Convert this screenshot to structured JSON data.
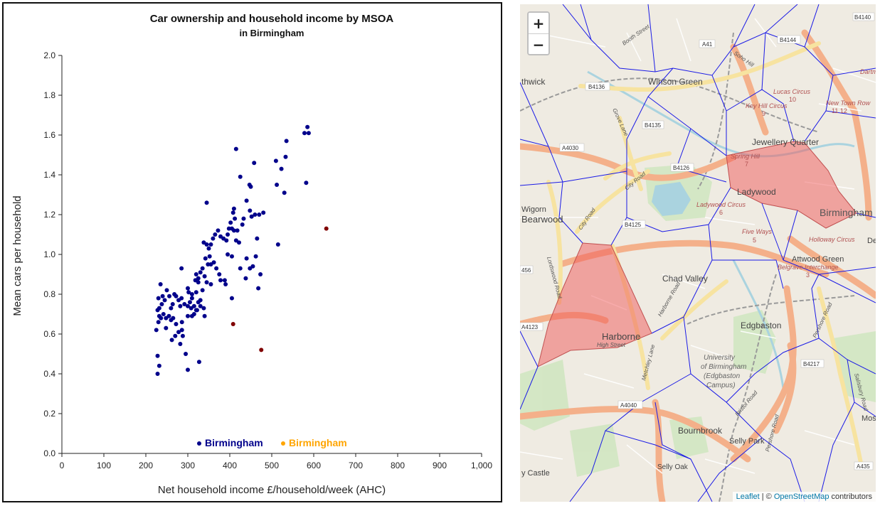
{
  "chart_data": {
    "type": "scatter",
    "title": "Car ownership and household income by MSOA",
    "subtitle": "in Birmingham",
    "xlabel": "Net household income £/household/week (AHC)",
    "ylabel": "Mean cars per household",
    "xlim": [
      0,
      1000
    ],
    "ylim": [
      0,
      2.0
    ],
    "xticks": [
      "0",
      "100",
      "200",
      "300",
      "400",
      "500",
      "600",
      "700",
      "800",
      "900",
      "1,000"
    ],
    "yticks": [
      "0.0",
      "0.2",
      "0.4",
      "0.6",
      "0.8",
      "1.0",
      "1.2",
      "1.4",
      "1.6",
      "1.8",
      "2.0"
    ],
    "grid": false,
    "legend_position": "bottom",
    "legend": [
      {
        "label": "Birmingham",
        "color": "#00008b"
      },
      {
        "label": "Birmingham",
        "color": "#ffa500"
      }
    ],
    "series": [
      {
        "name": "Birmingham",
        "color": "#00008b",
        "points": [
          [
            588,
            1.61
          ],
          [
            585,
            1.64
          ],
          [
            578,
            1.61
          ],
          [
            535,
            1.57
          ],
          [
            533,
            1.49
          ],
          [
            523,
            1.43
          ],
          [
            510,
            1.47
          ],
          [
            530,
            1.31
          ],
          [
            512,
            1.35
          ],
          [
            582,
            1.36
          ],
          [
            415,
            1.53
          ],
          [
            425,
            1.39
          ],
          [
            440,
            1.27
          ],
          [
            447,
            1.35
          ],
          [
            450,
            1.34
          ],
          [
            458,
            1.46
          ],
          [
            460,
            1.2
          ],
          [
            470,
            1.2
          ],
          [
            480,
            1.21
          ],
          [
            448,
            1.22
          ],
          [
            452,
            1.19
          ],
          [
            430,
            1.15
          ],
          [
            433,
            1.18
          ],
          [
            410,
            1.23
          ],
          [
            408,
            1.21
          ],
          [
            412,
            1.18
          ],
          [
            402,
            1.16
          ],
          [
            405,
            1.13
          ],
          [
            418,
            1.12
          ],
          [
            410,
            1.12
          ],
          [
            398,
            1.13
          ],
          [
            395,
            1.1
          ],
          [
            392,
            1.07
          ],
          [
            385,
            1.08
          ],
          [
            378,
            1.09
          ],
          [
            372,
            1.12
          ],
          [
            365,
            1.1
          ],
          [
            360,
            1.08
          ],
          [
            355,
            1.05
          ],
          [
            350,
            1.03
          ],
          [
            345,
            1.05
          ],
          [
            352,
            0.99
          ],
          [
            338,
            1.06
          ],
          [
            342,
            0.98
          ],
          [
            348,
            0.95
          ],
          [
            355,
            0.95
          ],
          [
            362,
            0.96
          ],
          [
            368,
            0.93
          ],
          [
            375,
            0.9
          ],
          [
            378,
            0.87
          ],
          [
            335,
            0.93
          ],
          [
            330,
            0.91
          ],
          [
            325,
            0.88
          ],
          [
            320,
            0.9
          ],
          [
            318,
            0.87
          ],
          [
            325,
            0.86
          ],
          [
            340,
            0.89
          ],
          [
            345,
            0.86
          ],
          [
            355,
            0.85
          ],
          [
            390,
            0.85
          ],
          [
            395,
            1.0
          ],
          [
            405,
            0.99
          ],
          [
            415,
            1.07
          ],
          [
            425,
            0.93
          ],
          [
            440,
            0.98
          ],
          [
            448,
            0.93
          ],
          [
            455,
            0.94
          ],
          [
            462,
            0.99
          ],
          [
            468,
            0.83
          ],
          [
            473,
            0.9
          ],
          [
            465,
            1.08
          ],
          [
            422,
            1.06
          ],
          [
            515,
            1.05
          ],
          [
            345,
            1.26
          ],
          [
            335,
            0.82
          ],
          [
            330,
            0.77
          ],
          [
            320,
            0.81
          ],
          [
            310,
            0.8
          ],
          [
            300,
            0.83
          ],
          [
            302,
            0.81
          ],
          [
            310,
            0.78
          ],
          [
            305,
            0.76
          ],
          [
            315,
            0.74
          ],
          [
            325,
            0.76
          ],
          [
            330,
            0.74
          ],
          [
            338,
            0.73
          ],
          [
            340,
            0.69
          ],
          [
            320,
            0.72
          ],
          [
            315,
            0.7
          ],
          [
            308,
            0.73
          ],
          [
            300,
            0.74
          ],
          [
            292,
            0.75
          ],
          [
            285,
            0.78
          ],
          [
            282,
            0.74
          ],
          [
            278,
            0.77
          ],
          [
            272,
            0.79
          ],
          [
            268,
            0.8
          ],
          [
            264,
            0.75
          ],
          [
            260,
            0.73
          ],
          [
            256,
            0.79
          ],
          [
            250,
            0.82
          ],
          [
            245,
            0.77
          ],
          [
            240,
            0.79
          ],
          [
            238,
            0.75
          ],
          [
            235,
            0.85
          ],
          [
            232,
            0.73
          ],
          [
            230,
            0.78
          ],
          [
            228,
            0.72
          ],
          [
            232,
            0.69
          ],
          [
            236,
            0.68
          ],
          [
            242,
            0.7
          ],
          [
            248,
            0.68
          ],
          [
            255,
            0.69
          ],
          [
            260,
            0.67
          ],
          [
            265,
            0.68
          ],
          [
            272,
            0.65
          ],
          [
            278,
            0.61
          ],
          [
            270,
            0.59
          ],
          [
            262,
            0.57
          ],
          [
            248,
            0.63
          ],
          [
            286,
            0.66
          ],
          [
            286,
            0.62
          ],
          [
            288,
            0.59
          ],
          [
            282,
            0.55
          ],
          [
            295,
            0.5
          ],
          [
            300,
            0.42
          ],
          [
            327,
            0.46
          ],
          [
            225,
            0.62
          ],
          [
            230,
            0.66
          ],
          [
            228,
            0.49
          ],
          [
            232,
            0.44
          ],
          [
            228,
            0.4
          ],
          [
            300,
            0.69
          ],
          [
            310,
            0.69
          ],
          [
            322,
            0.72
          ],
          [
            405,
            0.78
          ],
          [
            388,
            0.87
          ],
          [
            438,
            0.88
          ],
          [
            285,
            0.93
          ]
        ]
      },
      {
        "name": "",
        "color": "#800000",
        "points": [
          [
            630,
            1.13
          ],
          [
            408,
            0.65
          ],
          [
            475,
            0.52
          ]
        ]
      }
    ]
  },
  "map": {
    "zoom_in_label": "+",
    "zoom_out_label": "−",
    "attribution": {
      "leaflet": "Leaflet",
      "separator": " | © ",
      "osm": "OpenStreetMap",
      "suffix": " contributors"
    },
    "colors": {
      "voronoi": "#1a1ae6",
      "highlight_fill": "#ef5a5a",
      "highlight_stroke": "#c05050",
      "water": "#aad3df",
      "park": "#c8e6b4",
      "major_road": "#f0a878",
      "secondary_road": "#f6e6a4",
      "railway": "#888888"
    },
    "labels": {
      "wilson_green": "Winson Green",
      "hockley": "Jewellery Quarter",
      "ladywood": "Ladywood",
      "birmingham": "Birmingham",
      "chad_valley": "Chad Valley",
      "harborne": "Harborne",
      "edgbaston": "Edgbaston",
      "bearwood": "Bearwood",
      "wigorn": "Wigorn",
      "bournbrook": "Bournbrook",
      "selly_park": "Selly Park",
      "selly_oak": "Selly Oak",
      "attwood": "Attwood Green",
      "university": "University",
      "of_birmingham": "of Birmingham",
      "edgbaston_campus": "(Edgbaston",
      "campus": "Campus)",
      "smethwick": "thwick",
      "lucas_circus": "Lucas Circus",
      "new_town_row": "New Town Row",
      "key_hill_circus": "Key Hill Circus",
      "ladywood_circus": "Ladywood Circus",
      "five_ways": "Five Ways",
      "holloway_circus": "Holloway Circus",
      "belgrave": "Belgrave Interchange",
      "dartmouth": "Dartm",
      "high_street": "High Street",
      "city_road": "City Road",
      "grove_lane": "Grove Lane",
      "booth_street": "Booth Street",
      "soho_hill": "Soho Hill",
      "harborne_road": "Harborne Road",
      "metchley_lane": "Metchley Lane",
      "bristol_road": "Bristol Road",
      "pershore_road": "Pershore Road",
      "lordswood_road": "Lordswood Road",
      "salisbury_road": "Salisbury Road",
      "castle": "y Castle",
      "b4136": "B4136",
      "b4135": "B4135",
      "a4030": "A4030",
      "b4126": "B4126",
      "b4125": "B4125",
      "a41": "A41",
      "b4144": "B4144",
      "a4123": "A4123",
      "a4040": "A4040",
      "b4217": "B4217",
      "a435": "A435",
      "n456": "456",
      "b4140": "B4140",
      "mose": "Mos",
      "de": "De",
      "n7": "7",
      "n6": "6",
      "n5": "5",
      "n3": "3",
      "n9": "9",
      "n10": "10",
      "n11_12": "11  12",
      "spring_hill": "Spring Hill"
    }
  }
}
